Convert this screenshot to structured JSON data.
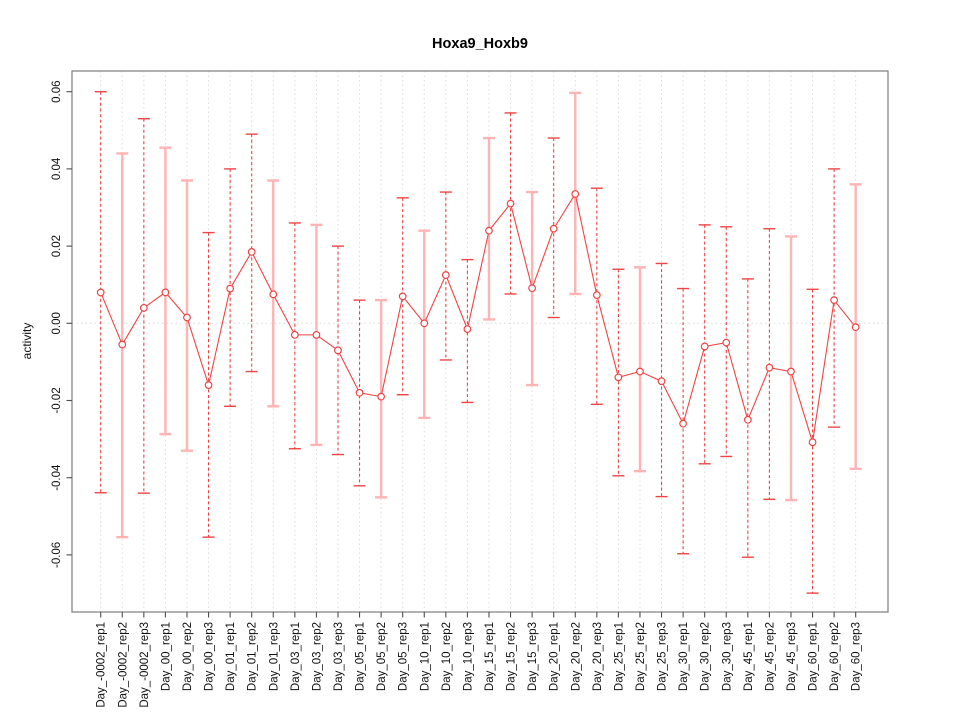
{
  "chart_data": {
    "type": "line",
    "title": "Hoxa9_Hoxb9",
    "xlabel": "",
    "ylabel": "activity",
    "legend_position": "none",
    "grid": "vertical dotted gridline per category plus dotted horizontal line at zero",
    "ylim": [
      -0.0748,
      0.0654
    ],
    "yticks": [
      0.06,
      0.04,
      0.02,
      0.0,
      -0.02,
      -0.04,
      -0.06
    ],
    "ytick_labels": [
      "0.06",
      "0.04",
      "0.02",
      "0.00",
      "-0.02",
      "-0.04",
      "-0.06"
    ],
    "categories": [
      "Day_-0002_rep1",
      "Day_-0002_rep2",
      "Day_-0002_rep3",
      "Day_00_rep1",
      "Day_00_rep2",
      "Day_00_rep3",
      "Day_01_rep1",
      "Day_01_rep2",
      "Day_01_rep3",
      "Day_03_rep1",
      "Day_03_rep2",
      "Day_03_rep3",
      "Day_05_rep1",
      "Day_05_rep2",
      "Day_05_rep3",
      "Day_10_rep1",
      "Day_10_rep2",
      "Day_10_rep3",
      "Day_15_rep1",
      "Day_15_rep2",
      "Day_15_rep3",
      "Day_20_rep1",
      "Day_20_rep2",
      "Day_20_rep3",
      "Day_25_rep1",
      "Day_25_rep2",
      "Day_25_rep3",
      "Day_30_rep1",
      "Day_30_rep2",
      "Day_30_rep3",
      "Day_45_rep1",
      "Day_45_rep2",
      "Day_45_rep3",
      "Day_60_rep1",
      "Day_60_rep2",
      "Day_60_rep3"
    ],
    "series": [
      {
        "name": "activity",
        "values": [
          0.008,
          -0.0055,
          0.004,
          0.008,
          0.0015,
          -0.016,
          0.009,
          0.0185,
          0.0075,
          -0.003,
          -0.003,
          -0.007,
          -0.018,
          -0.019,
          0.007,
          0.0,
          0.0125,
          -0.0015,
          0.024,
          0.031,
          0.0091,
          0.0245,
          0.0335,
          0.0073,
          -0.014,
          -0.0125,
          -0.015,
          -0.026,
          -0.006,
          -0.005,
          -0.025,
          -0.0115,
          -0.0125,
          -0.0308,
          0.006,
          -0.001
        ]
      }
    ],
    "error_bars": {
      "upper": [
        0.06,
        0.044,
        0.053,
        0.0455,
        0.037,
        0.0235,
        0.04,
        0.049,
        0.037,
        0.026,
        0.0255,
        0.02,
        0.006,
        0.006,
        0.0325,
        0.024,
        0.034,
        0.0165,
        0.048,
        0.0545,
        0.034,
        0.048,
        0.0597,
        0.035,
        0.014,
        0.0145,
        0.0155,
        0.009,
        0.0255,
        0.025,
        0.0115,
        0.0245,
        0.0225,
        0.0088,
        0.04,
        0.036
      ],
      "lower": [
        -0.0439,
        -0.0554,
        -0.044,
        -0.0287,
        -0.033,
        -0.0554,
        -0.0215,
        -0.0125,
        -0.0215,
        -0.0325,
        -0.0315,
        -0.034,
        -0.0421,
        -0.0451,
        -0.0185,
        -0.0245,
        -0.0095,
        -0.0205,
        0.001,
        0.0076,
        -0.016,
        0.0015,
        0.0076,
        -0.021,
        -0.0395,
        -0.0383,
        -0.0449,
        -0.0597,
        -0.0364,
        -0.0345,
        -0.0606,
        -0.0456,
        -0.0458,
        -0.0699,
        -0.0269,
        -0.0377
      ],
      "bar_styles": [
        "dashed",
        "solid",
        "dashed",
        "solid",
        "solid",
        "dashed",
        "dashed",
        "dashed",
        "solid",
        "dashed",
        "solid",
        "dashed",
        "dashed",
        "solid",
        "dashed",
        "solid",
        "dashed",
        "dashed",
        "solid",
        "dashed",
        "solid",
        "dashed",
        "solid",
        "dashed",
        "dashed",
        "solid",
        "dashed",
        "dashed",
        "dashed",
        "dashed",
        "dashed",
        "dashed",
        "solid",
        "dashed",
        "dashed",
        "solid"
      ]
    },
    "colors": {
      "series_line": "#ef4444",
      "point_ring": "#ef4444",
      "error_bar_dashed": "#ef4444",
      "error_bar_solid": "#ffb3b3",
      "gridline": "#dcdcdc",
      "zero_line": "#dcdcdc",
      "plot_border": "#7d7d7d",
      "tick_mark": "#4d4d4d",
      "background": "#ffffff"
    }
  }
}
